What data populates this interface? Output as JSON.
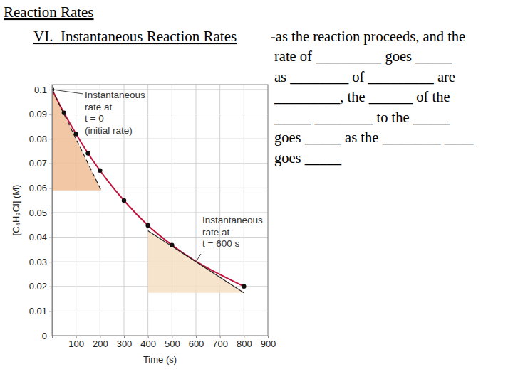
{
  "slide": {
    "title": "Reaction Rates",
    "heading": "VI.  Instantaneous Reaction Rates",
    "lines": [
      "-as the reaction proceeds, and the",
      "rate of _________ goes _____",
      "as ________ of _________ are",
      "_________, the ______ of the",
      "_____ ________ to the _____",
      "goes _____ as the ________ ____",
      "goes _____"
    ]
  },
  "chart_data": {
    "type": "line",
    "x_label": "Time (s)",
    "y_label": "[C₄H₉Cl] (M)",
    "x": [
      0,
      50,
      100,
      150,
      200,
      300,
      400,
      500,
      800
    ],
    "values": [
      0.1,
      0.0905,
      0.082,
      0.0741,
      0.0671,
      0.0549,
      0.0448,
      0.0368,
      0.02
    ],
    "color": "#c0143c",
    "marker": "circle",
    "xlim": [
      0,
      900
    ],
    "ylim": [
      0,
      0.102
    ],
    "xticks": [
      100,
      200,
      300,
      400,
      500,
      600,
      700,
      800,
      900
    ],
    "yticks": [
      0,
      0.01,
      0.02,
      0.03,
      0.04,
      0.05,
      0.06,
      0.07,
      0.08,
      0.09,
      0.1
    ],
    "grid": true,
    "tangents": [
      {
        "x": [
          0,
          205
        ],
        "y": [
          0.1,
          0.059
        ],
        "line_style": "dashed",
        "at": [
          0,
          0.1
        ],
        "label": [
          "Instantaneous",
          "rate at",
          "t = 0",
          "(initial rate)"
        ]
      },
      {
        "x": [
          400,
          800
        ],
        "y": [
          0.0426,
          0.0174
        ],
        "line_style": "solid",
        "at": [
          600,
          0.03
        ],
        "label": [
          "Instantaneous",
          "rate at",
          "t = 600 s"
        ]
      }
    ]
  }
}
